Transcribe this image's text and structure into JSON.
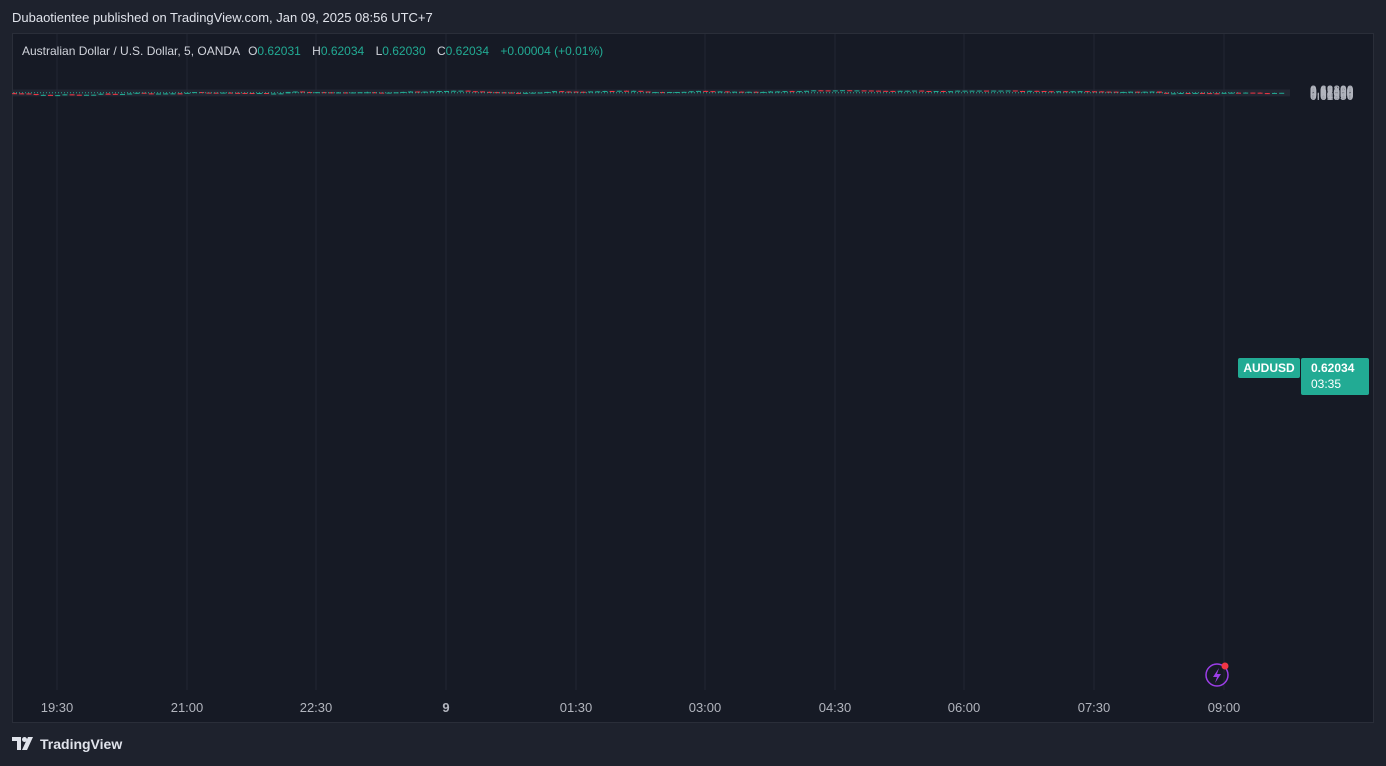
{
  "publisher_line": "Dubaotientee published on TradingView.com, Jan 09, 2025 08:56 UTC+7",
  "brand": "TradingView",
  "legend": {
    "symbol": "Australian Dollar / U.S. Dollar, 5, OANDA",
    "o_label": "O",
    "o_value": "0.62031",
    "h_label": "H",
    "h_value": "0.62034",
    "l_label": "L",
    "l_value": "0.62030",
    "c_label": "C",
    "c_value": "0.62034",
    "change": "+0.00004 (+0.01%)"
  },
  "price_tag": {
    "symbol": "AUDUSD",
    "price": "0.62034",
    "countdown": "03:35"
  },
  "colors": {
    "up": "#22ab94",
    "down": "#f23645",
    "grid": "#232733",
    "background": "#161a25"
  },
  "chart_data": {
    "type": "candlestick",
    "title": "Australian Dollar / U.S. Dollar, 5, OANDA",
    "symbol": "AUDUSD",
    "timeframe": "5",
    "ylim": [
      0.6184,
      0.6223
    ],
    "y_ticks": [
      "0.62200",
      "0.62150",
      "0.62100",
      "0.62050",
      "0.62000",
      "0.61950",
      "0.61900",
      "0.61850"
    ],
    "x_ticks": [
      "19:30",
      "21:00",
      "22:30",
      "9",
      "01:30",
      "03:00",
      "04:30",
      "06:00",
      "07:30",
      "09:00"
    ],
    "last_price": 0.62034,
    "candles": [
      [
        0.6201,
        0.62045,
        0.61995,
        0.62
      ],
      [
        0.62,
        0.62005,
        0.6199,
        0.61995
      ],
      [
        0.61995,
        0.62,
        0.6195,
        0.6196
      ],
      [
        0.6196,
        0.61965,
        0.6189,
        0.61905
      ],
      [
        0.61905,
        0.61935,
        0.61895,
        0.6191
      ],
      [
        0.6191,
        0.6192,
        0.6188,
        0.6189
      ],
      [
        0.6189,
        0.61905,
        0.61875,
        0.61895
      ],
      [
        0.61895,
        0.6195,
        0.6189,
        0.6194
      ],
      [
        0.6194,
        0.61945,
        0.619,
        0.6192
      ],
      [
        0.6192,
        0.61925,
        0.61895,
        0.619
      ],
      [
        0.619,
        0.6192,
        0.6189,
        0.61915
      ],
      [
        0.61915,
        0.6193,
        0.6191,
        0.6192
      ],
      [
        0.6192,
        0.61985,
        0.6191,
        0.6198
      ],
      [
        0.6198,
        0.62015,
        0.6196,
        0.6197
      ],
      [
        0.6197,
        0.61985,
        0.61955,
        0.6196
      ],
      [
        0.6196,
        0.61975,
        0.6195,
        0.6196
      ],
      [
        0.6196,
        0.62,
        0.6195,
        0.6199
      ],
      [
        0.6199,
        0.6204,
        0.6197,
        0.62035
      ],
      [
        0.62035,
        0.62045,
        0.62,
        0.62
      ],
      [
        0.62,
        0.6201,
        0.61955,
        0.6196
      ],
      [
        0.6196,
        0.61995,
        0.61955,
        0.6199
      ],
      [
        0.6199,
        0.62005,
        0.61965,
        0.61995
      ],
      [
        0.61995,
        0.6201,
        0.6198,
        0.62
      ],
      [
        0.62,
        0.6202,
        0.6197,
        0.61995
      ],
      [
        0.61995,
        0.62035,
        0.6199,
        0.6203
      ],
      [
        0.6203,
        0.6208,
        0.6202,
        0.62075
      ],
      [
        0.62075,
        0.6208,
        0.6204,
        0.62045
      ],
      [
        0.62045,
        0.6205,
        0.6203,
        0.6204
      ],
      [
        0.6204,
        0.62045,
        0.62025,
        0.62035
      ],
      [
        0.62035,
        0.6205,
        0.62025,
        0.62045
      ],
      [
        0.62045,
        0.62055,
        0.6203,
        0.6203
      ],
      [
        0.6203,
        0.62045,
        0.6201,
        0.62025
      ],
      [
        0.62025,
        0.62035,
        0.6199,
        0.6202
      ],
      [
        0.6202,
        0.6203,
        0.61975,
        0.61985
      ],
      [
        0.61985,
        0.6203,
        0.6198,
        0.6202
      ],
      [
        0.6202,
        0.62025,
        0.6199,
        0.6199
      ],
      [
        0.6199,
        0.62005,
        0.61985,
        0.6199
      ],
      [
        0.6199,
        0.62015,
        0.61985,
        0.62
      ],
      [
        0.62,
        0.62085,
        0.61995,
        0.62085
      ],
      [
        0.62085,
        0.62115,
        0.6208,
        0.6211
      ],
      [
        0.6211,
        0.6212,
        0.6207,
        0.62075
      ],
      [
        0.62075,
        0.6209,
        0.6204,
        0.6205
      ],
      [
        0.6205,
        0.62075,
        0.6204,
        0.6207
      ],
      [
        0.6207,
        0.62085,
        0.6204,
        0.6206
      ],
      [
        0.6206,
        0.6207,
        0.6204,
        0.6205
      ],
      [
        0.6205,
        0.6207,
        0.6203,
        0.62055
      ],
      [
        0.62055,
        0.6206,
        0.62035,
        0.6205
      ],
      [
        0.6205,
        0.6206,
        0.6203,
        0.62055
      ],
      [
        0.62055,
        0.6207,
        0.6204,
        0.62065
      ],
      [
        0.62065,
        0.621,
        0.62055,
        0.62065
      ],
      [
        0.62065,
        0.62075,
        0.6204,
        0.62045
      ],
      [
        0.62045,
        0.62055,
        0.6203,
        0.6204
      ],
      [
        0.6204,
        0.6206,
        0.62035,
        0.62045
      ],
      [
        0.62045,
        0.6206,
        0.6204,
        0.6206
      ],
      [
        0.6206,
        0.62095,
        0.62055,
        0.62085
      ],
      [
        0.62085,
        0.62125,
        0.62075,
        0.6211
      ],
      [
        0.6211,
        0.6211,
        0.6208,
        0.62085
      ],
      [
        0.62085,
        0.6211,
        0.62075,
        0.62105
      ],
      [
        0.62105,
        0.6213,
        0.621,
        0.62125
      ],
      [
        0.62125,
        0.6215,
        0.6212,
        0.6214
      ],
      [
        0.6214,
        0.6215,
        0.62125,
        0.6214
      ],
      [
        0.6214,
        0.6216,
        0.62135,
        0.62155
      ],
      [
        0.62155,
        0.62165,
        0.6215,
        0.6216
      ],
      [
        0.6216,
        0.6217,
        0.6212,
        0.62125
      ],
      [
        0.62125,
        0.6213,
        0.62105,
        0.62115
      ],
      [
        0.62115,
        0.6212,
        0.6208,
        0.6209
      ],
      [
        0.6209,
        0.621,
        0.6206,
        0.6207
      ],
      [
        0.6207,
        0.6209,
        0.6205,
        0.6206
      ],
      [
        0.6206,
        0.6208,
        0.6204,
        0.6205
      ],
      [
        0.6205,
        0.6206,
        0.62025,
        0.6203
      ],
      [
        0.6203,
        0.6205,
        0.6202,
        0.6202
      ],
      [
        0.6202,
        0.6204,
        0.6201,
        0.6203
      ],
      [
        0.6203,
        0.6205,
        0.62015,
        0.6204
      ],
      [
        0.6204,
        0.6205,
        0.6202,
        0.6205
      ],
      [
        0.6205,
        0.6209,
        0.62045,
        0.62085
      ],
      [
        0.62085,
        0.6214,
        0.62075,
        0.6213
      ],
      [
        0.6213,
        0.6214,
        0.621,
        0.6211
      ],
      [
        0.6211,
        0.6212,
        0.621,
        0.62105
      ],
      [
        0.62105,
        0.6212,
        0.62095,
        0.62095
      ],
      [
        0.62095,
        0.621,
        0.6208,
        0.62085
      ],
      [
        0.62085,
        0.62115,
        0.6208,
        0.62115
      ],
      [
        0.62115,
        0.6213,
        0.6211,
        0.6212
      ],
      [
        0.6212,
        0.6215,
        0.62115,
        0.6214
      ],
      [
        0.6214,
        0.62145,
        0.62125,
        0.6213
      ],
      [
        0.6213,
        0.6216,
        0.62125,
        0.62155
      ],
      [
        0.62155,
        0.62165,
        0.62125,
        0.6214
      ],
      [
        0.6214,
        0.6216,
        0.62135,
        0.6215
      ],
      [
        0.6215,
        0.6215,
        0.62105,
        0.6211
      ],
      [
        0.6211,
        0.62115,
        0.6207,
        0.6207
      ],
      [
        0.6207,
        0.62085,
        0.62065,
        0.62075
      ],
      [
        0.62075,
        0.62085,
        0.62065,
        0.6207
      ],
      [
        0.6207,
        0.62085,
        0.6206,
        0.6208
      ],
      [
        0.6208,
        0.62085,
        0.62065,
        0.6208
      ],
      [
        0.6208,
        0.62095,
        0.62075,
        0.6209
      ],
      [
        0.6209,
        0.6213,
        0.62085,
        0.62125
      ],
      [
        0.62125,
        0.6215,
        0.62125,
        0.62145
      ],
      [
        0.62145,
        0.62155,
        0.62125,
        0.6213
      ],
      [
        0.6213,
        0.6213,
        0.62105,
        0.6211
      ],
      [
        0.6211,
        0.62125,
        0.62105,
        0.62115
      ],
      [
        0.62115,
        0.62125,
        0.6208,
        0.62085
      ],
      [
        0.62085,
        0.62105,
        0.62075,
        0.621
      ],
      [
        0.621,
        0.6211,
        0.6208,
        0.62085
      ],
      [
        0.62085,
        0.62105,
        0.6207,
        0.62095
      ],
      [
        0.62095,
        0.6211,
        0.62075,
        0.6208
      ],
      [
        0.6208,
        0.62105,
        0.62075,
        0.62085
      ],
      [
        0.62085,
        0.6213,
        0.6208,
        0.6211
      ],
      [
        0.6211,
        0.62125,
        0.62085,
        0.62115
      ],
      [
        0.62115,
        0.6214,
        0.6211,
        0.62135
      ],
      [
        0.62135,
        0.6215,
        0.62125,
        0.6213
      ],
      [
        0.6213,
        0.6214,
        0.62115,
        0.62135
      ],
      [
        0.62135,
        0.62155,
        0.6213,
        0.6215
      ],
      [
        0.6215,
        0.62185,
        0.6214,
        0.6218
      ],
      [
        0.6218,
        0.6219,
        0.62165,
        0.62175
      ],
      [
        0.62175,
        0.6218,
        0.6216,
        0.6216
      ],
      [
        0.6216,
        0.6218,
        0.62155,
        0.62175
      ],
      [
        0.62175,
        0.6219,
        0.6217,
        0.62185
      ],
      [
        0.62185,
        0.62185,
        0.6217,
        0.62175
      ],
      [
        0.62175,
        0.6218,
        0.6217,
        0.62175
      ],
      [
        0.62175,
        0.62175,
        0.6216,
        0.6217
      ],
      [
        0.6217,
        0.62175,
        0.62155,
        0.6216
      ],
      [
        0.6216,
        0.62165,
        0.6214,
        0.6215
      ],
      [
        0.6215,
        0.62155,
        0.62145,
        0.62145
      ],
      [
        0.62145,
        0.6215,
        0.62135,
        0.6214
      ],
      [
        0.6214,
        0.62155,
        0.6214,
        0.6215
      ],
      [
        0.6215,
        0.62165,
        0.62145,
        0.62155
      ],
      [
        0.62155,
        0.62165,
        0.6215,
        0.62165
      ],
      [
        0.62165,
        0.6217,
        0.62135,
        0.6214
      ],
      [
        0.6214,
        0.6214,
        0.62125,
        0.6213
      ],
      [
        0.6213,
        0.6214,
        0.6212,
        0.6214
      ],
      [
        0.6214,
        0.6215,
        0.62125,
        0.62125
      ],
      [
        0.62125,
        0.6214,
        0.6212,
        0.6213
      ],
      [
        0.6213,
        0.62165,
        0.6212,
        0.6216
      ],
      [
        0.6216,
        0.62165,
        0.62155,
        0.6216
      ],
      [
        0.6216,
        0.6217,
        0.62155,
        0.6216
      ],
      [
        0.6216,
        0.62175,
        0.6216,
        0.62165
      ],
      [
        0.62165,
        0.62165,
        0.6216,
        0.6216
      ],
      [
        0.6216,
        0.6217,
        0.62155,
        0.62165
      ],
      [
        0.62165,
        0.6217,
        0.6216,
        0.62165
      ],
      [
        0.62165,
        0.6217,
        0.6216,
        0.6217
      ],
      [
        0.6217,
        0.6217,
        0.62135,
        0.6214
      ],
      [
        0.6214,
        0.6215,
        0.62125,
        0.6213
      ],
      [
        0.6213,
        0.62155,
        0.62125,
        0.6215
      ],
      [
        0.6215,
        0.62155,
        0.62135,
        0.6214
      ],
      [
        0.6214,
        0.62145,
        0.6212,
        0.62125
      ],
      [
        0.62125,
        0.6213,
        0.6211,
        0.6212
      ],
      [
        0.6212,
        0.6213,
        0.6211,
        0.62125
      ],
      [
        0.62125,
        0.62135,
        0.6211,
        0.62115
      ],
      [
        0.62115,
        0.6213,
        0.6211,
        0.62125
      ],
      [
        0.62125,
        0.6214,
        0.6211,
        0.6213
      ],
      [
        0.6213,
        0.6214,
        0.62115,
        0.6212
      ],
      [
        0.6212,
        0.62125,
        0.6211,
        0.62115
      ],
      [
        0.62115,
        0.62125,
        0.621,
        0.62105
      ],
      [
        0.62105,
        0.6211,
        0.62095,
        0.621
      ],
      [
        0.621,
        0.6211,
        0.62085,
        0.62085
      ],
      [
        0.62085,
        0.62095,
        0.62075,
        0.62085
      ],
      [
        0.62085,
        0.62105,
        0.6208,
        0.621
      ],
      [
        0.621,
        0.62105,
        0.62085,
        0.62095
      ],
      [
        0.62095,
        0.6211,
        0.6209,
        0.621
      ],
      [
        0.621,
        0.62115,
        0.6209,
        0.6211
      ],
      [
        0.6211,
        0.6211,
        0.6203,
        0.62035
      ],
      [
        0.62035,
        0.62035,
        0.6198,
        0.61985
      ],
      [
        0.61985,
        0.62005,
        0.6198,
        0.62
      ],
      [
        0.62,
        0.62025,
        0.61995,
        0.6202
      ],
      [
        0.6202,
        0.62025,
        0.61995,
        0.62005
      ],
      [
        0.62005,
        0.6203,
        0.6199,
        0.62025
      ],
      [
        0.62025,
        0.62035,
        0.6201,
        0.62015
      ],
      [
        0.62015,
        0.6202,
        0.61995,
        0.62005
      ],
      [
        0.62005,
        0.6201,
        0.6199,
        0.62
      ],
      [
        0.62,
        0.6203,
        0.61995,
        0.6203
      ],
      [
        0.6203,
        0.6205,
        0.62025,
        0.6204
      ],
      [
        0.6204,
        0.62045,
        0.6203,
        0.62035
      ],
      [
        0.62035,
        0.6206,
        0.6203,
        0.62045
      ],
      [
        0.62045,
        0.6205,
        0.62035,
        0.6204
      ],
      [
        0.6204,
        0.62055,
        0.6201,
        0.62015
      ],
      [
        0.62015,
        0.6202,
        0.61995,
        0.6201
      ],
      [
        0.6201,
        0.62035,
        0.62005,
        0.62025
      ],
      [
        0.62031,
        0.62034,
        0.6203,
        0.62034
      ]
    ]
  }
}
